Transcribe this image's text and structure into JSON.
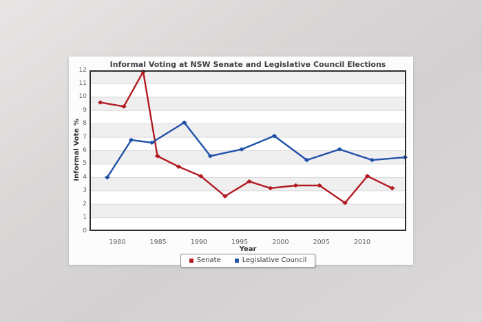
{
  "chart_data": {
    "type": "line",
    "title": "Informal Voting at NSW Senate and Legislative Council Elections",
    "xlabel": "Year",
    "ylabel": "Informal Vote %",
    "xlim": [
      1976.6,
      2015.4
    ],
    "ylim": [
      0,
      12
    ],
    "x_ticks": [
      1980,
      1985,
      1990,
      1995,
      2000,
      2005,
      2010
    ],
    "y_ticks": [
      0,
      1,
      2,
      3,
      4,
      5,
      6,
      7,
      8,
      9,
      10,
      11,
      12
    ],
    "grid": "horizontal gridlines with alternating shaded bands, no vertical gridlines",
    "legend_position": "bottom-center",
    "marker": "diamond",
    "series": [
      {
        "name": "Senate",
        "color": "#b11b21",
        "points": [
          {
            "year": 1977,
            "x": 1977.94,
            "y": 9.6
          },
          {
            "year": 1980,
            "x": 1980.8,
            "y": 9.3
          },
          {
            "year": 1983,
            "x": 1983.18,
            "y": 11.9
          },
          {
            "year": 1984,
            "x": 1984.92,
            "y": 5.6
          },
          {
            "year": 1987,
            "x": 1987.53,
            "y": 4.8
          },
          {
            "year": 1990,
            "x": 1990.23,
            "y": 4.1
          },
          {
            "year": 1993,
            "x": 1993.2,
            "y": 2.6
          },
          {
            "year": 1996,
            "x": 1996.17,
            "y": 3.7
          },
          {
            "year": 1998,
            "x": 1998.76,
            "y": 3.2
          },
          {
            "year": 2001,
            "x": 2001.86,
            "y": 3.4
          },
          {
            "year": 2004,
            "x": 2004.77,
            "y": 3.4
          },
          {
            "year": 2007,
            "x": 2007.9,
            "y": 2.1
          },
          {
            "year": 2010,
            "x": 2010.64,
            "y": 4.1
          },
          {
            "year": 2013,
            "x": 2013.68,
            "y": 3.2
          }
        ]
      },
      {
        "name": "Legislative Council",
        "color": "#1f51a8",
        "points": [
          {
            "year": 1978,
            "x": 1978.77,
            "y": 4.0
          },
          {
            "year": 1981,
            "x": 1981.72,
            "y": 6.8
          },
          {
            "year": 1984,
            "x": 1984.23,
            "y": 6.6
          },
          {
            "year": 1988,
            "x": 1988.21,
            "y": 8.1
          },
          {
            "year": 1991,
            "x": 1991.4,
            "y": 5.6
          },
          {
            "year": 1995,
            "x": 1995.23,
            "y": 6.1
          },
          {
            "year": 1999,
            "x": 1999.23,
            "y": 7.1
          },
          {
            "year": 2003,
            "x": 2003.22,
            "y": 5.3
          },
          {
            "year": 2007,
            "x": 2007.23,
            "y": 6.1
          },
          {
            "year": 2011,
            "x": 2011.23,
            "y": 5.3
          },
          {
            "year": 2015,
            "x": 2015.24,
            "y": 5.5
          }
        ]
      }
    ],
    "style_colors": {
      "plot_background": "#ffffff",
      "band_fill": "#f0eff0",
      "gridline": "#d9d9d9",
      "plot_border": "#2e2e2e",
      "title_text": "#3f3f46",
      "tick_text": "#606060",
      "panel_background": "#fcfcfc",
      "page_background": "#d6d4d4"
    }
  }
}
